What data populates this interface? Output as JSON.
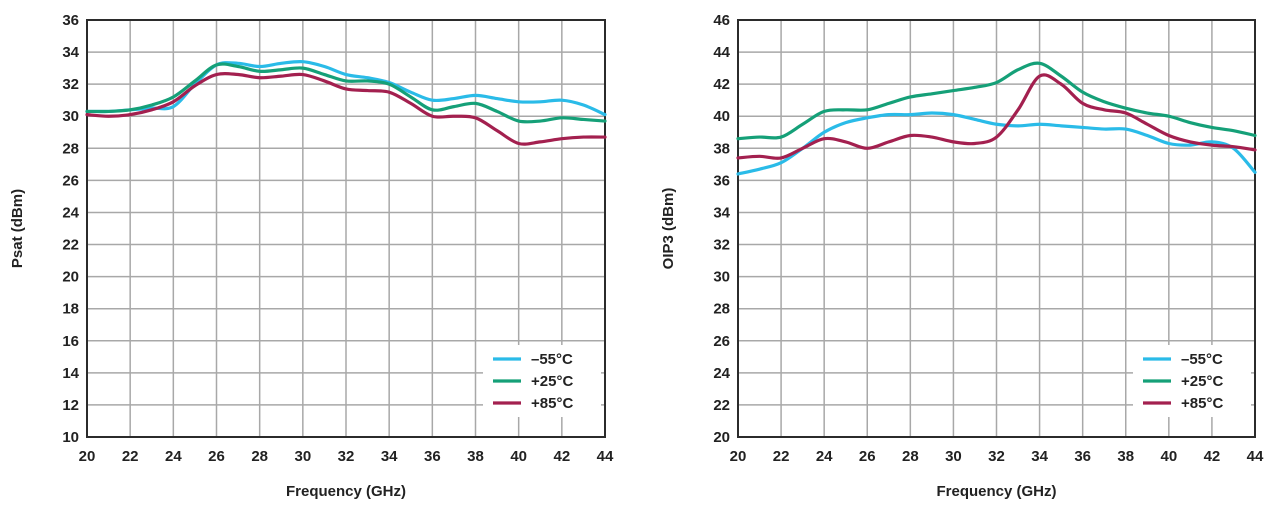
{
  "chart_data": [
    {
      "type": "line",
      "xlabel": "Frequency (GHz)",
      "ylabel": "Psat (dBm)",
      "xlim": [
        20,
        44
      ],
      "ylim": [
        10,
        36
      ],
      "xticks": [
        "20",
        "22",
        "24",
        "26",
        "28",
        "30",
        "32",
        "34",
        "36",
        "38",
        "40",
        "42",
        "44"
      ],
      "yticks": [
        "10",
        "12",
        "14",
        "16",
        "18",
        "20",
        "22",
        "24",
        "26",
        "28",
        "30",
        "32",
        "34",
        "36"
      ],
      "grid": true,
      "legend_position": "bottom-right",
      "x": [
        20,
        21,
        22,
        23,
        24,
        25,
        26,
        27,
        28,
        29,
        30,
        31,
        32,
        33,
        34,
        35,
        36,
        37,
        38,
        39,
        40,
        41,
        42,
        43,
        44
      ],
      "series": [
        {
          "name": "–55°C",
          "color": "#2abbe8",
          "values": [
            30.3,
            30.3,
            30.4,
            30.5,
            30.6,
            32.0,
            33.2,
            33.3,
            33.1,
            33.3,
            33.4,
            33.1,
            32.6,
            32.4,
            32.1,
            31.5,
            31.0,
            31.1,
            31.3,
            31.1,
            30.9,
            30.9,
            31.0,
            30.7,
            30.1
          ]
        },
        {
          "name": "+25°C",
          "color": "#15a078",
          "values": [
            30.3,
            30.3,
            30.4,
            30.7,
            31.2,
            32.2,
            33.2,
            33.1,
            32.8,
            32.9,
            33.0,
            32.6,
            32.2,
            32.2,
            32.0,
            31.2,
            30.4,
            30.6,
            30.8,
            30.3,
            29.7,
            29.7,
            29.9,
            29.8,
            29.7
          ]
        },
        {
          "name": "+85°C",
          "color": "#a3204f",
          "values": [
            30.1,
            30.0,
            30.1,
            30.4,
            30.9,
            31.9,
            32.6,
            32.6,
            32.4,
            32.5,
            32.6,
            32.2,
            31.7,
            31.6,
            31.5,
            30.8,
            30.0,
            30.0,
            29.9,
            29.1,
            28.3,
            28.4,
            28.6,
            28.7,
            28.7
          ]
        }
      ]
    },
    {
      "type": "line",
      "xlabel": "Frequency (GHz)",
      "ylabel": "OIP3 (dBm)",
      "xlim": [
        20,
        44
      ],
      "ylim": [
        20,
        46
      ],
      "xticks": [
        "20",
        "22",
        "24",
        "26",
        "28",
        "30",
        "32",
        "34",
        "36",
        "38",
        "40",
        "42",
        "44"
      ],
      "yticks": [
        "20",
        "22",
        "24",
        "26",
        "28",
        "30",
        "32",
        "34",
        "36",
        "38",
        "40",
        "42",
        "44",
        "46"
      ],
      "grid": true,
      "legend_position": "bottom-right",
      "x": [
        20,
        21,
        22,
        23,
        24,
        25,
        26,
        27,
        28,
        29,
        30,
        31,
        32,
        33,
        34,
        35,
        36,
        37,
        38,
        39,
        40,
        41,
        42,
        43,
        44
      ],
      "series": [
        {
          "name": "–55°C",
          "color": "#2abbe8",
          "values": [
            36.4,
            36.7,
            37.1,
            38.0,
            39.0,
            39.6,
            39.9,
            40.1,
            40.1,
            40.2,
            40.1,
            39.8,
            39.5,
            39.4,
            39.5,
            39.4,
            39.3,
            39.2,
            39.2,
            38.8,
            38.3,
            38.2,
            38.4,
            38.0,
            36.5
          ]
        },
        {
          "name": "+25°C",
          "color": "#15a078",
          "values": [
            38.6,
            38.7,
            38.7,
            39.5,
            40.3,
            40.4,
            40.4,
            40.8,
            41.2,
            41.4,
            41.6,
            41.8,
            42.1,
            42.9,
            43.3,
            42.5,
            41.5,
            40.9,
            40.5,
            40.2,
            40.0,
            39.6,
            39.3,
            39.1,
            38.8
          ]
        },
        {
          "name": "+85°C",
          "color": "#a3204f",
          "values": [
            37.4,
            37.5,
            37.4,
            38.0,
            38.6,
            38.4,
            38.0,
            38.4,
            38.8,
            38.7,
            38.4,
            38.3,
            38.7,
            40.4,
            42.5,
            42.0,
            40.8,
            40.4,
            40.2,
            39.5,
            38.8,
            38.4,
            38.2,
            38.1,
            37.9
          ]
        }
      ]
    }
  ]
}
